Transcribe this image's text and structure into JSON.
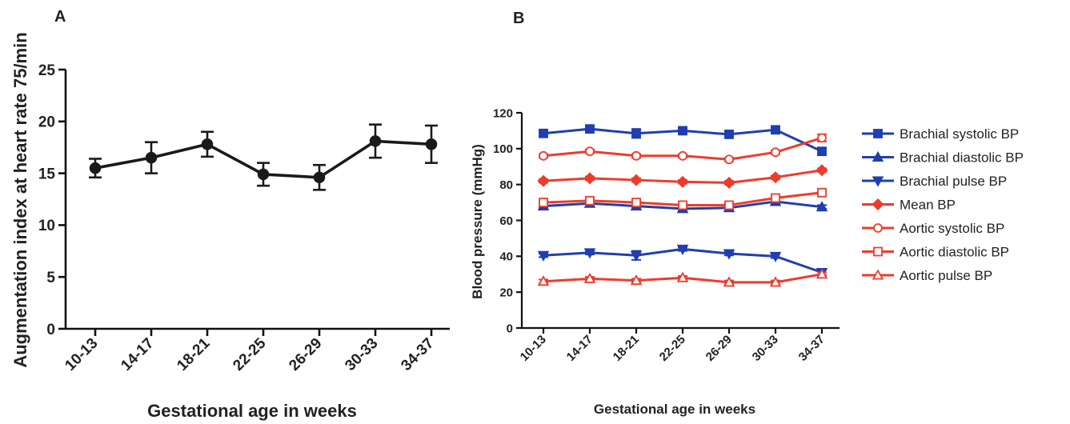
{
  "panel_a": {
    "letter": "A"
  },
  "panel_b": {
    "letter": "B"
  },
  "chart_data": [
    {
      "type": "line",
      "panel": "A",
      "title": "",
      "xlabel": "Gestational age in weeks",
      "ylabel": "Augmentation index at heart rate 75/min",
      "categories": [
        "10-13",
        "14-17",
        "18-21",
        "22-25",
        "26-29",
        "30-33",
        "34-37"
      ],
      "ylim": [
        0,
        25
      ],
      "yticks": [
        0,
        5,
        10,
        15,
        20,
        25
      ],
      "grid": false,
      "series": [
        {
          "values": [
            15.5,
            16.5,
            17.8,
            14.9,
            14.6,
            18.1,
            17.8
          ],
          "error": [
            0.9,
            1.5,
            1.2,
            1.1,
            1.2,
            1.6,
            1.8
          ],
          "color": "#1a1a1a",
          "marker": "circle"
        }
      ]
    },
    {
      "type": "line",
      "panel": "B",
      "title": "",
      "xlabel": "Gestational age in weeks",
      "ylabel": "Blood pressure (mmHg)",
      "categories": [
        "10-13",
        "14-17",
        "18-21",
        "22-25",
        "26-29",
        "30-33",
        "34-37"
      ],
      "ylim": [
        0,
        120
      ],
      "yticks": [
        0,
        20,
        40,
        60,
        80,
        100,
        120
      ],
      "grid": false,
      "legend_position": "right",
      "series": [
        {
          "name": "Brachial systolic BP",
          "values": [
            108.5,
            111,
            108.5,
            110,
            108,
            110.5,
            98.5
          ],
          "error": [
            1.5,
            1.5,
            2.5,
            1.5,
            1.5,
            1.5,
            2
          ],
          "color": "#1f3fb0",
          "marker": "square",
          "filled": true
        },
        {
          "name": "Brachial diastolic BP",
          "values": [
            68,
            69.5,
            68,
            66.5,
            67,
            70.5,
            67.5
          ],
          "error": [
            1,
            1,
            1,
            1,
            1,
            1,
            1
          ],
          "color": "#1f3fb0",
          "marker": "triangle-up",
          "filled": true
        },
        {
          "name": "Brachial pulse BP",
          "values": [
            40.5,
            42,
            40.5,
            44,
            41.5,
            40,
            31
          ],
          "error": [
            1,
            1,
            2.5,
            1,
            1,
            1,
            1.5
          ],
          "color": "#1f3fb0",
          "marker": "triangle-down",
          "filled": true
        },
        {
          "name": "Mean BP",
          "values": [
            82,
            83.5,
            82.5,
            81.5,
            81,
            84,
            88
          ],
          "error": [
            1,
            1,
            1,
            1,
            1,
            1,
            1
          ],
          "color": "#ef3b2c",
          "marker": "diamond",
          "filled": true
        },
        {
          "name": "Aortic systolic BP",
          "values": [
            96,
            98.5,
            96,
            96,
            94,
            98,
            106
          ],
          "error": [
            1,
            1,
            1,
            1,
            1,
            1,
            2
          ],
          "color": "#ef3b2c",
          "marker": "circle",
          "filled": false
        },
        {
          "name": "Aortic diastolic BP",
          "values": [
            70,
            71,
            70,
            68.5,
            68.5,
            72.5,
            75.5
          ],
          "error": [
            1,
            1,
            1,
            1,
            1,
            1,
            1
          ],
          "color": "#ef3b2c",
          "marker": "square",
          "filled": false
        },
        {
          "name": "Aortic pulse BP",
          "values": [
            26,
            27.5,
            26.5,
            28,
            25.5,
            25.5,
            30
          ],
          "error": [
            1,
            1,
            1,
            1,
            1,
            1,
            1
          ],
          "color": "#ef3b2c",
          "marker": "triangle-up",
          "filled": false
        }
      ]
    }
  ]
}
